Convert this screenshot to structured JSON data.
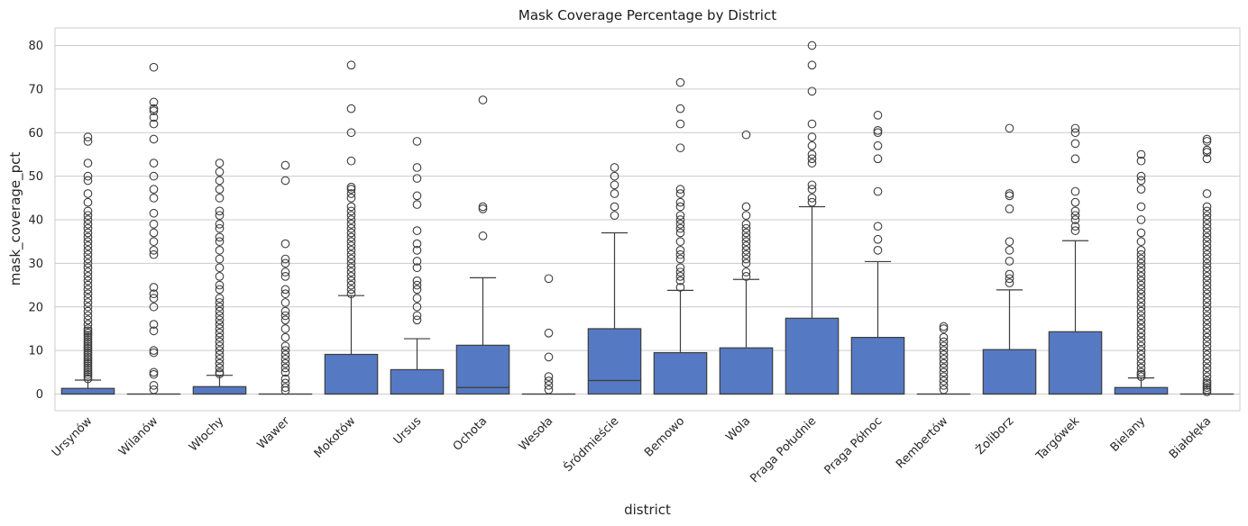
{
  "chart_data": {
    "type": "box",
    "title": "Mask Coverage Percentage by District",
    "xlabel": "district",
    "ylabel": "mask_coverage_pct",
    "ylim": [
      -4,
      84
    ],
    "yticks": [
      0,
      10,
      20,
      30,
      40,
      50,
      60,
      70,
      80
    ],
    "grid": "horizontal",
    "box_color": "#5579c2",
    "line_color": "#3d3d3d",
    "categories": [
      "Ursynów",
      "Wilanów",
      "Włochy",
      "Wawer",
      "Mokotów",
      "Ursus",
      "Ochota",
      "Wesoła",
      "Śródmieście",
      "Bemowo",
      "Wola",
      "Praga Południe",
      "Praga Północ",
      "Rembertów",
      "Żoliborz",
      "Targówek",
      "Bielany",
      "Białołęka"
    ],
    "boxes": [
      {
        "q1": 0,
        "median": 0,
        "q3": 1.3,
        "whisker_low": 0,
        "whisker_high": 3.2,
        "outliers": [
          3.5,
          4,
          4.5,
          5,
          5.5,
          6,
          6.5,
          7,
          7.5,
          8,
          8.5,
          9,
          9.5,
          10,
          10.5,
          11,
          11.5,
          12,
          12.5,
          13,
          13.5,
          14,
          14.5,
          15,
          16,
          17,
          18,
          19,
          20,
          21,
          22,
          23,
          24,
          25,
          26,
          27,
          28,
          29,
          30,
          31,
          32,
          33,
          34,
          35,
          36,
          37,
          38,
          39,
          40,
          41,
          42,
          44,
          46,
          49,
          50,
          53,
          58,
          59
        ]
      },
      {
        "q1": 0,
        "median": 0,
        "q3": 0,
        "whisker_low": 0,
        "whisker_high": 0,
        "outliers": [
          1,
          2,
          4.5,
          5,
          9.5,
          10,
          14.5,
          16,
          20,
          22,
          23,
          24.5,
          32,
          33,
          35,
          37,
          39,
          41.5,
          45,
          47,
          50,
          53,
          58.5,
          62,
          63.5,
          65,
          65.5,
          67,
          75
        ]
      },
      {
        "q1": 0,
        "median": 0,
        "q3": 1.7,
        "whisker_low": 0,
        "whisker_high": 4.3,
        "outliers": [
          4.6,
          5,
          6,
          7,
          8,
          9,
          10,
          11,
          12,
          13,
          14,
          15,
          16,
          17,
          18,
          19,
          20,
          21,
          22,
          24,
          25,
          27,
          29,
          31,
          33,
          35,
          36,
          38,
          39,
          41,
          42,
          45,
          47,
          49,
          51,
          53
        ]
      },
      {
        "q1": 0,
        "median": 0,
        "q3": 0,
        "whisker_low": 0,
        "whisker_high": 0,
        "outliers": [
          0.8,
          1.5,
          2.5,
          3.5,
          5,
          6,
          7,
          8,
          9,
          10,
          11,
          13,
          15,
          17,
          18,
          19,
          21,
          23,
          24,
          27,
          28,
          30,
          31,
          34.5,
          49,
          52.5
        ]
      },
      {
        "q1": 0,
        "median": 0,
        "q3": 9.1,
        "whisker_low": 0,
        "whisker_high": 22.6,
        "outliers": [
          23,
          24,
          25,
          26,
          27,
          28,
          29,
          30,
          31,
          32,
          33,
          34,
          35,
          36,
          37,
          38,
          39,
          40,
          41,
          42,
          43,
          45,
          46,
          47,
          47.5,
          53.5,
          60,
          65.5,
          75.5
        ]
      },
      {
        "q1": 0,
        "median": 0,
        "q3": 5.6,
        "whisker_low": 0,
        "whisker_high": 12.7,
        "outliers": [
          17,
          18,
          20,
          22,
          24,
          25,
          26,
          29,
          30.5,
          33,
          34.5,
          37.5,
          43.5,
          45.5,
          49.5,
          52,
          58
        ]
      },
      {
        "q1": 0,
        "median": 1.5,
        "q3": 11.2,
        "whisker_low": 0,
        "whisker_high": 26.7,
        "outliers": [
          36.3,
          42.5,
          43,
          67.5
        ]
      },
      {
        "q1": 0,
        "median": 0,
        "q3": 0,
        "whisker_low": 0,
        "whisker_high": 0,
        "outliers": [
          1,
          2,
          3,
          4,
          8.5,
          14,
          26.5
        ]
      },
      {
        "q1": 0,
        "median": 3.1,
        "q3": 15,
        "whisker_low": 0,
        "whisker_high": 37,
        "outliers": [
          41,
          43,
          46,
          48,
          50,
          52
        ]
      },
      {
        "q1": 0,
        "median": 0,
        "q3": 9.5,
        "whisker_low": 0,
        "whisker_high": 23.8,
        "outliers": [
          24.5,
          26,
          27,
          28,
          29,
          31,
          32,
          33,
          35,
          37,
          38,
          39,
          40,
          41,
          43,
          44,
          46,
          47,
          56.5,
          62,
          65.5,
          71.5
        ]
      },
      {
        "q1": 0,
        "median": 0,
        "q3": 10.6,
        "whisker_low": 0,
        "whisker_high": 26.3,
        "outliers": [
          27,
          28,
          30,
          31,
          32,
          33,
          34,
          35,
          36,
          37,
          38,
          39,
          41,
          43,
          59.5
        ]
      },
      {
        "q1": 0,
        "median": 0,
        "q3": 17.4,
        "whisker_low": 0,
        "whisker_high": 43,
        "outliers": [
          44,
          45,
          47,
          48,
          53,
          54,
          55,
          57,
          59,
          62,
          69.5,
          75.5,
          80
        ]
      },
      {
        "q1": 0,
        "median": 0,
        "q3": 13,
        "whisker_low": 0,
        "whisker_high": 30.4,
        "outliers": [
          33,
          35.5,
          38.5,
          46.5,
          54,
          57,
          60,
          60.5,
          64
        ]
      },
      {
        "q1": 0,
        "median": 0,
        "q3": 0,
        "whisker_low": 0,
        "whisker_high": 0,
        "outliers": [
          1,
          2,
          3,
          4,
          5,
          6,
          7,
          8,
          9,
          10,
          11,
          12,
          13,
          15,
          15.5
        ]
      },
      {
        "q1": 0,
        "median": 0,
        "q3": 10.2,
        "whisker_low": 0,
        "whisker_high": 23.9,
        "outliers": [
          25.5,
          26.5,
          27.5,
          30.5,
          33,
          35,
          42.5,
          45.5,
          46,
          61
        ]
      },
      {
        "q1": 0,
        "median": 0,
        "q3": 14.3,
        "whisker_low": 0,
        "whisker_high": 35.2,
        "outliers": [
          37.5,
          38.5,
          40,
          41,
          42,
          44,
          46.5,
          54,
          57.5,
          60,
          61
        ]
      },
      {
        "q1": 0,
        "median": 0,
        "q3": 1.5,
        "whisker_low": 0,
        "whisker_high": 3.7,
        "outliers": [
          4,
          4.5,
          5,
          6,
          7,
          8,
          9,
          10,
          11,
          12,
          13,
          14,
          15,
          16,
          17,
          18,
          19,
          20,
          21,
          22,
          23,
          24,
          25,
          26,
          27,
          28,
          29,
          30,
          31,
          32,
          33,
          35,
          37,
          40,
          43,
          47,
          49,
          50,
          53.5,
          55
        ]
      },
      {
        "q1": 0,
        "median": 0,
        "q3": 0,
        "whisker_low": 0,
        "whisker_high": 0,
        "outliers": [
          0.5,
          1,
          1.5,
          2,
          2.5,
          3,
          4,
          5,
          6,
          7,
          8,
          9,
          10,
          11,
          12,
          13,
          14,
          15,
          16,
          17,
          18,
          19,
          20,
          21,
          22,
          23,
          24,
          25,
          26,
          27,
          28,
          29,
          30,
          31,
          32,
          33,
          34,
          35,
          36,
          37,
          38,
          39,
          40,
          41,
          42,
          43,
          46,
          54,
          55.5,
          56,
          58,
          58.5
        ]
      }
    ]
  }
}
